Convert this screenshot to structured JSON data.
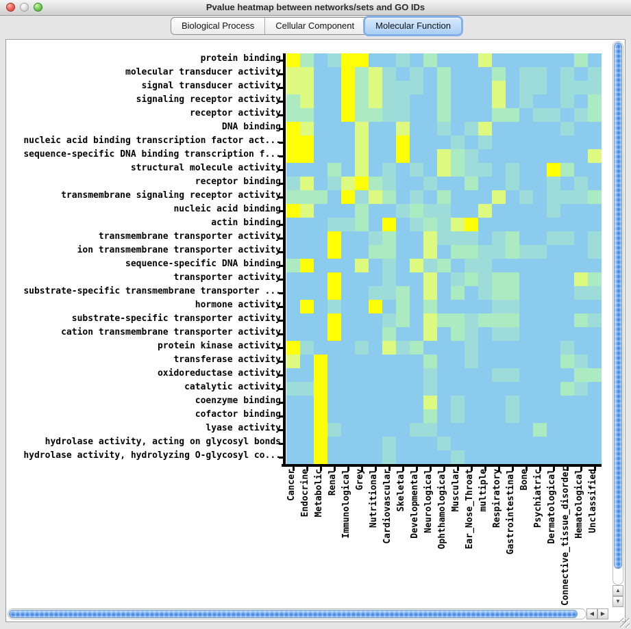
{
  "window": {
    "title": "Pvalue heatmap between networks/sets and GO IDs"
  },
  "tabs": [
    {
      "label": "Biological Process",
      "selected": false
    },
    {
      "label": "Cellular Component",
      "selected": false
    },
    {
      "label": "Molecular Function",
      "selected": true
    }
  ],
  "scrollbars": {
    "icons": {
      "up": "▲",
      "down": "▼",
      "left": "◀",
      "right": "▶"
    }
  },
  "chart_data": {
    "type": "heatmap",
    "title": "Pvalue heatmap between networks/sets and GO IDs",
    "rows": [
      "protein binding",
      "molecular transducer activity",
      "signal transducer activity",
      "signaling receptor activity",
      "receptor activity",
      "DNA binding",
      "nucleic acid binding transcription factor act...",
      "sequence-specific DNA binding transcription f...",
      "structural molecule activity",
      "receptor binding",
      "transmembrane signaling receptor activity",
      "nucleic acid binding",
      "actin binding",
      "transmembrane transporter activity",
      "ion transmembrane transporter activity",
      "sequence-specific DNA binding",
      "transporter activity",
      "substrate-specific transmembrane transporter ...",
      "hormone activity",
      "substrate-specific transporter activity",
      "cation transmembrane transporter activity",
      "protein kinase activity",
      "transferase activity",
      "oxidoreductase activity",
      "catalytic activity",
      "coenzyme binding",
      "cofactor binding",
      "lyase activity",
      "hydrolase activity, acting on glycosyl bonds",
      "hydrolase activity, hydrolyzing O-glycosyl co..."
    ],
    "columns": [
      "Cancer",
      "Endocrine",
      "Metabolic",
      "Renal",
      "Immunological",
      "Grey",
      "Nutritional",
      "Cardiovascular",
      "Skeletal",
      "Developmental",
      "Neurological",
      "Ophthamological",
      "Muscular",
      "Ear_Nose_Throat",
      "multiple",
      "Respiratory",
      "Gastrointestinal",
      "Bone",
      "Psychiatric",
      "Dermatological",
      "Connective_tissue_disorder",
      "Hematological",
      "Unclassified"
    ],
    "palette": {
      "0": "#8bcbee",
      "1": "#9edcd9",
      "2": "#aceac2",
      "3": "#ddf97f",
      "4": "#ffff05"
    },
    "value_scale": "0 = high p-value (blue) ... 4 = most significant p-value (yellow)",
    "grid": [
      "42014400102000300000020",
      "33004231010200020110101",
      "33004231110200030110111",
      "23004231100200030100102",
      "22004221100200022011012",
      "43000300300101300000100",
      "44000300400010100000000",
      "44000300400321000000003",
      "00020301010321101004200",
      "13013421001002001001010",
      "22204132010200030101112",
      "43000200121100300001000",
      "00011204012134000000000",
      "00040012003111012001101",
      "00040022003022112110001",
      "24000301031201100000000",
      "00040001003012122000032",
      "00040011203020122000011",
      "04010040202000011000000",
      "00040001203221222000021",
      "00040002003021011000000",
      "41000103120001000000100",
      "30400000002001000000210",
      "00400000001000011000022",
      "11400000001000000000210",
      "00400000003010001000000",
      "00400000002010001000000",
      "00410000011000000020000",
      "00400001000100000000000",
      "00400001000010000000000"
    ]
  }
}
